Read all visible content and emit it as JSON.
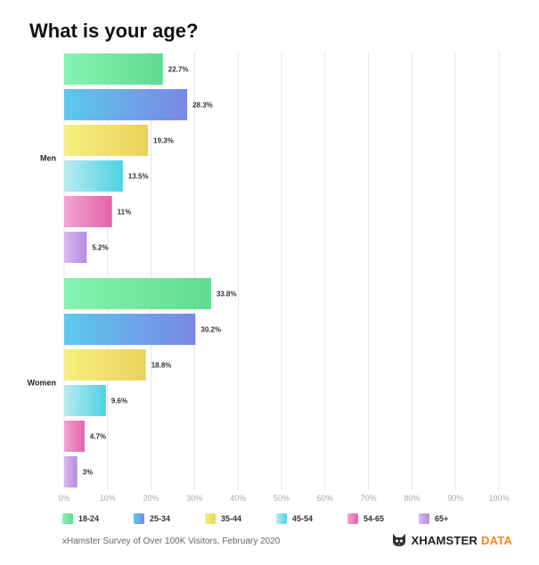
{
  "chart_data": {
    "type": "bar",
    "orientation": "horizontal",
    "title": "What is your age?",
    "groups": [
      "Men",
      "Women"
    ],
    "series": [
      {
        "name": "18-24",
        "values": [
          22.7,
          33.8
        ],
        "labels": [
          "22.7%",
          "33.8%"
        ],
        "color_from": "#85f3b1",
        "color_to": "#5fdc93"
      },
      {
        "name": "25-34",
        "values": [
          28.3,
          30.2
        ],
        "labels": [
          "28.3%",
          "30.2%"
        ],
        "color_from": "#5cc9ec",
        "color_to": "#7b86e6"
      },
      {
        "name": "35-44",
        "values": [
          19.3,
          18.8
        ],
        "labels": [
          "19.3%",
          "18.8%"
        ],
        "color_from": "#f6ef7e",
        "color_to": "#ecd15d"
      },
      {
        "name": "45-54",
        "values": [
          13.5,
          9.6
        ],
        "labels": [
          "13.5%",
          "9.6%"
        ],
        "color_from": "#b7ecef",
        "color_to": "#4fd2e3"
      },
      {
        "name": "54-65",
        "values": [
          11,
          4.7
        ],
        "labels": [
          "11%",
          "4.7%"
        ],
        "color_from": "#f5a3d1",
        "color_to": "#e263aa"
      },
      {
        "name": "65+",
        "values": [
          5.2,
          3
        ],
        "labels": [
          "5.2%",
          "3%"
        ],
        "color_from": "#d9b8f2",
        "color_to": "#b68be0"
      }
    ],
    "x_ticks": [
      "0%",
      "10%",
      "20%",
      "30%",
      "40%",
      "50%",
      "60%",
      "70%",
      "80%",
      "90%",
      "100%"
    ],
    "xlim": [
      0,
      100
    ],
    "grid": true,
    "legend_position": "bottom"
  },
  "source": "xHamster Survey of Over 100K Visitors, February 2020",
  "brand": {
    "part1": "XHAMSTER",
    "part2": "DATA",
    "icon": "cat-logo-icon",
    "accent_color": "#f08a24"
  }
}
